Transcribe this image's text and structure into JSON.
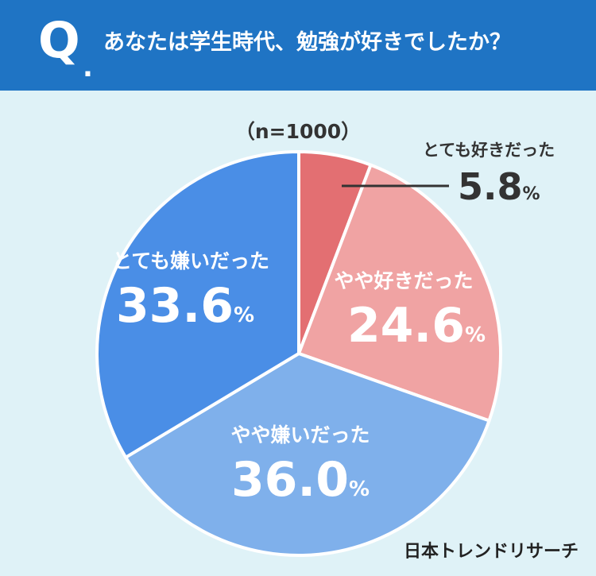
{
  "header": {
    "q_mark": "Q",
    "q_dot": ".",
    "question": "あなたは学生時代、勉強が好きでしたか？"
  },
  "sample_label": "（n=1000）",
  "brand": "日本トレンドリサーチ",
  "colors": {
    "header_bg": "#1f74c4",
    "background": "#dff2f7"
  },
  "chart_data": {
    "type": "pie",
    "slices": [
      {
        "label": "とても好きだった",
        "value": 5.8,
        "display": "5.8",
        "color": "#e36f72"
      },
      {
        "label": "やや好きだった",
        "value": 24.6,
        "display": "24.6",
        "color": "#f0a3a3"
      },
      {
        "label": "やや嫌いだった",
        "value": 36.0,
        "display": "36.0",
        "color": "#7fb0eb"
      },
      {
        "label": "とても嫌いだった",
        "value": 33.6,
        "display": "33.6",
        "color": "#4a8ee6"
      }
    ],
    "percent_sign": "%",
    "start": "12 o'clock",
    "direction": "clockwise"
  }
}
